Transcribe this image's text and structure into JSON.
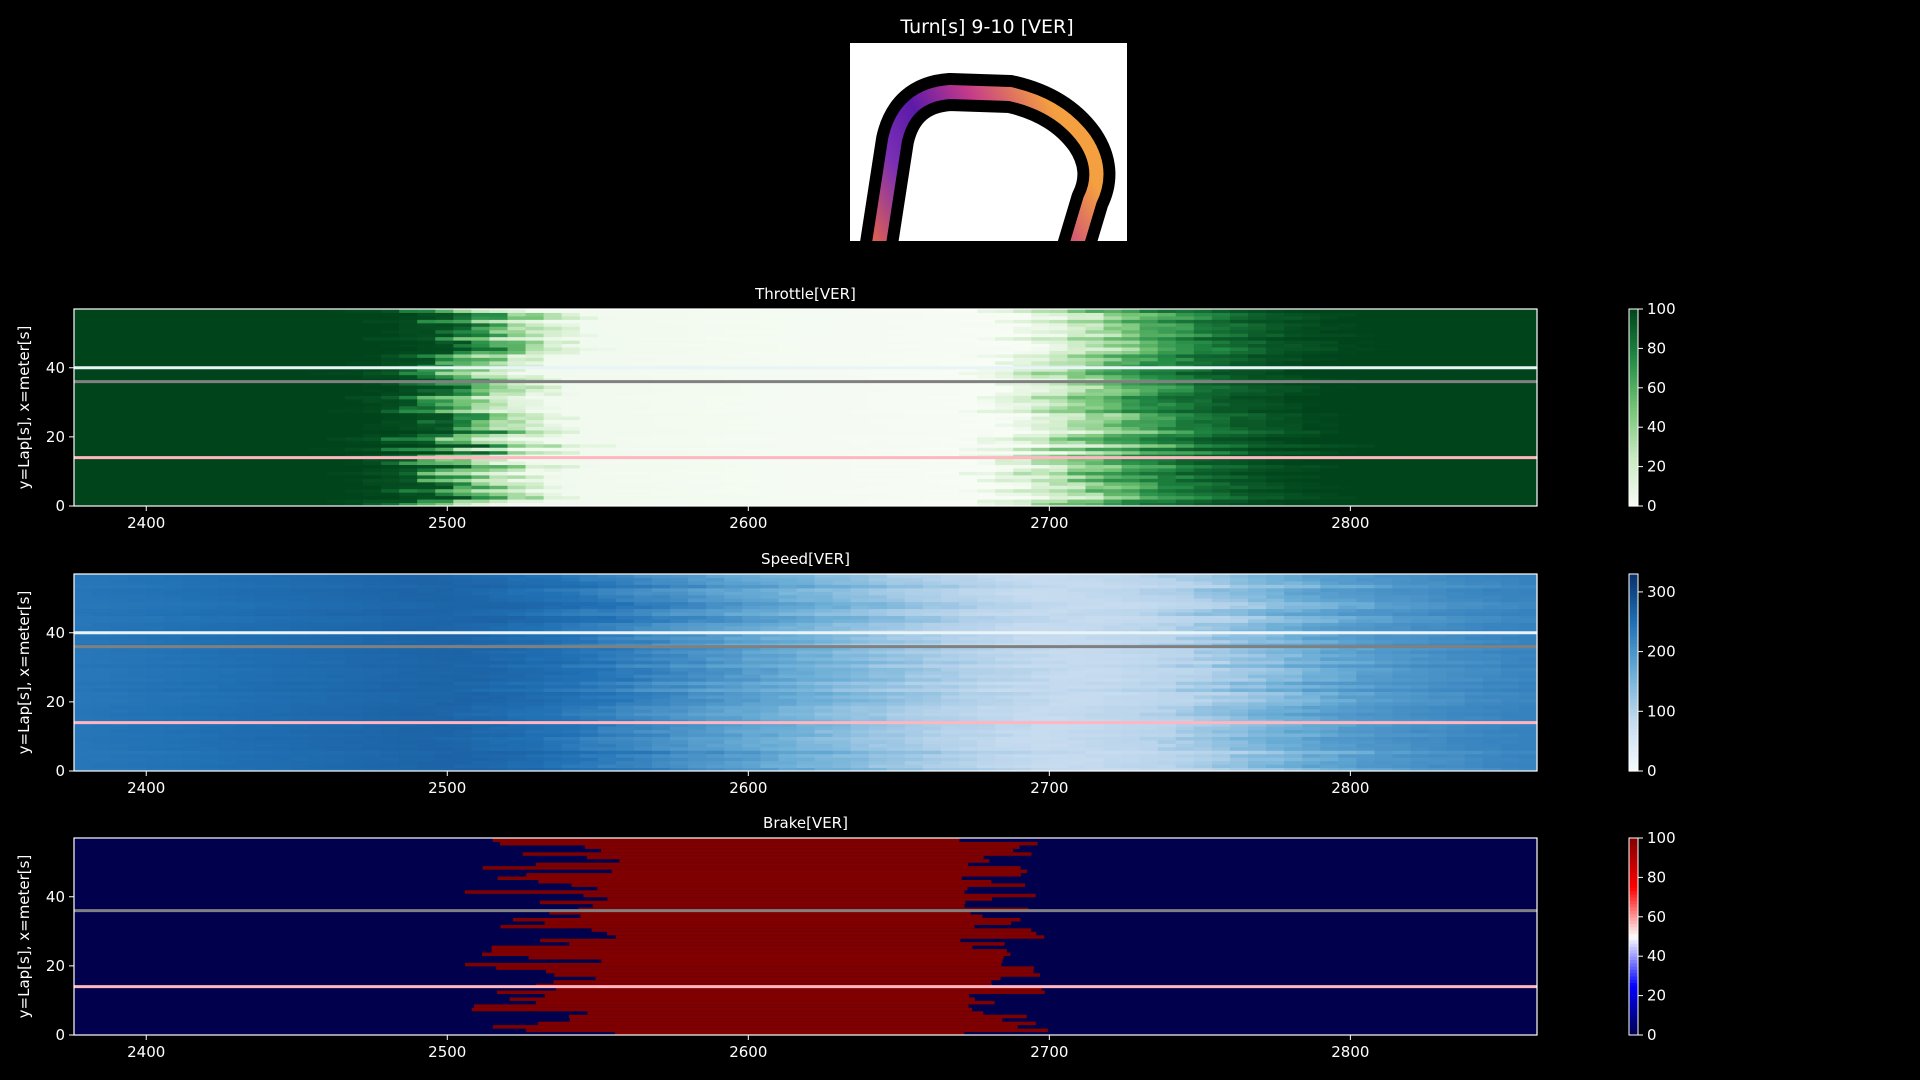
{
  "suptitle": "Turn[s] 9-10 [VER]",
  "colors": {
    "background": "#000000",
    "throttle_dark": "#00441b",
    "speed_dark": "#2171b5",
    "brake_low": "#00004c",
    "brake_high": "#800000",
    "ref_line_white": "#e8f4f8",
    "ref_line_gray": "#808080",
    "ref_line_pink": "#ffb6c1"
  },
  "track_map": {
    "type": "image",
    "description_icon": "track-turn-icon"
  },
  "chart_data": [
    {
      "type": "heatmap",
      "title": "Throttle[VER]",
      "ylabel": "y=Lap[s], x=meter[s]",
      "xlim": [
        2376,
        2862
      ],
      "ylim": [
        0,
        57
      ],
      "xticks": [
        2400,
        2500,
        2600,
        2700,
        2800
      ],
      "yticks": [
        0,
        20,
        40
      ],
      "colormap": "Greens",
      "colorbar": {
        "min": 0,
        "max": 100,
        "ticks": [
          0,
          20,
          40,
          60,
          80,
          100
        ]
      },
      "grid": false,
      "profile_by_distance": [
        {
          "x": 2376,
          "value": 100
        },
        {
          "x": 2470,
          "value": 100
        },
        {
          "x": 2490,
          "value": 95
        },
        {
          "x": 2505,
          "value": 60
        },
        {
          "x": 2520,
          "value": 25
        },
        {
          "x": 2535,
          "value": 3
        },
        {
          "x": 2680,
          "value": 0
        },
        {
          "x": 2700,
          "value": 20
        },
        {
          "x": 2720,
          "value": 55
        },
        {
          "x": 2740,
          "value": 78
        },
        {
          "x": 2760,
          "value": 92
        },
        {
          "x": 2790,
          "value": 100
        },
        {
          "x": 2862,
          "value": 100
        }
      ],
      "reference_laps": [
        {
          "lap": 40,
          "color": "#e8f4f8"
        },
        {
          "lap": 36,
          "color": "#808080"
        },
        {
          "lap": 14,
          "color": "#ffb6c1"
        }
      ]
    },
    {
      "type": "heatmap",
      "title": "Speed[VER]",
      "ylabel": "y=Lap[s], x=meter[s]",
      "xlim": [
        2376,
        2862
      ],
      "ylim": [
        0,
        57
      ],
      "xticks": [
        2400,
        2500,
        2600,
        2700,
        2800
      ],
      "yticks": [
        0,
        20,
        40
      ],
      "colormap": "Blues",
      "colorbar": {
        "min": 0,
        "max": 330,
        "ticks": [
          0,
          100,
          200,
          300
        ]
      },
      "grid": false,
      "profile_by_distance": [
        {
          "x": 2376,
          "value": 240
        },
        {
          "x": 2500,
          "value": 265
        },
        {
          "x": 2540,
          "value": 245
        },
        {
          "x": 2580,
          "value": 200
        },
        {
          "x": 2620,
          "value": 155
        },
        {
          "x": 2660,
          "value": 105
        },
        {
          "x": 2700,
          "value": 80
        },
        {
          "x": 2740,
          "value": 95
        },
        {
          "x": 2770,
          "value": 145
        },
        {
          "x": 2800,
          "value": 190
        },
        {
          "x": 2840,
          "value": 215
        },
        {
          "x": 2862,
          "value": 225
        }
      ],
      "reference_laps": [
        {
          "lap": 40,
          "color": "#e8f4f8"
        },
        {
          "lap": 36,
          "color": "#808080"
        },
        {
          "lap": 14,
          "color": "#ffb6c1"
        }
      ]
    },
    {
      "type": "heatmap",
      "title": "Brake[VER]",
      "ylabel": "y=Lap[s], x=meter[s]",
      "xlim": [
        2376,
        2862
      ],
      "ylim": [
        0,
        57
      ],
      "xticks": [
        2400,
        2500,
        2600,
        2700,
        2800
      ],
      "yticks": [
        0,
        20,
        40
      ],
      "colormap": "seismic",
      "colorbar": {
        "min": 0,
        "max": 100,
        "ticks": [
          0,
          20,
          40,
          60,
          80,
          100
        ]
      },
      "grid": false,
      "brake_zone": {
        "start_min": 2505,
        "start_max": 2560,
        "end_min": 2670,
        "end_max": 2700,
        "value": 100
      },
      "reference_laps": [
        {
          "lap": 36,
          "color": "#808080"
        },
        {
          "lap": 14,
          "color": "#ffb6c1"
        }
      ]
    }
  ]
}
